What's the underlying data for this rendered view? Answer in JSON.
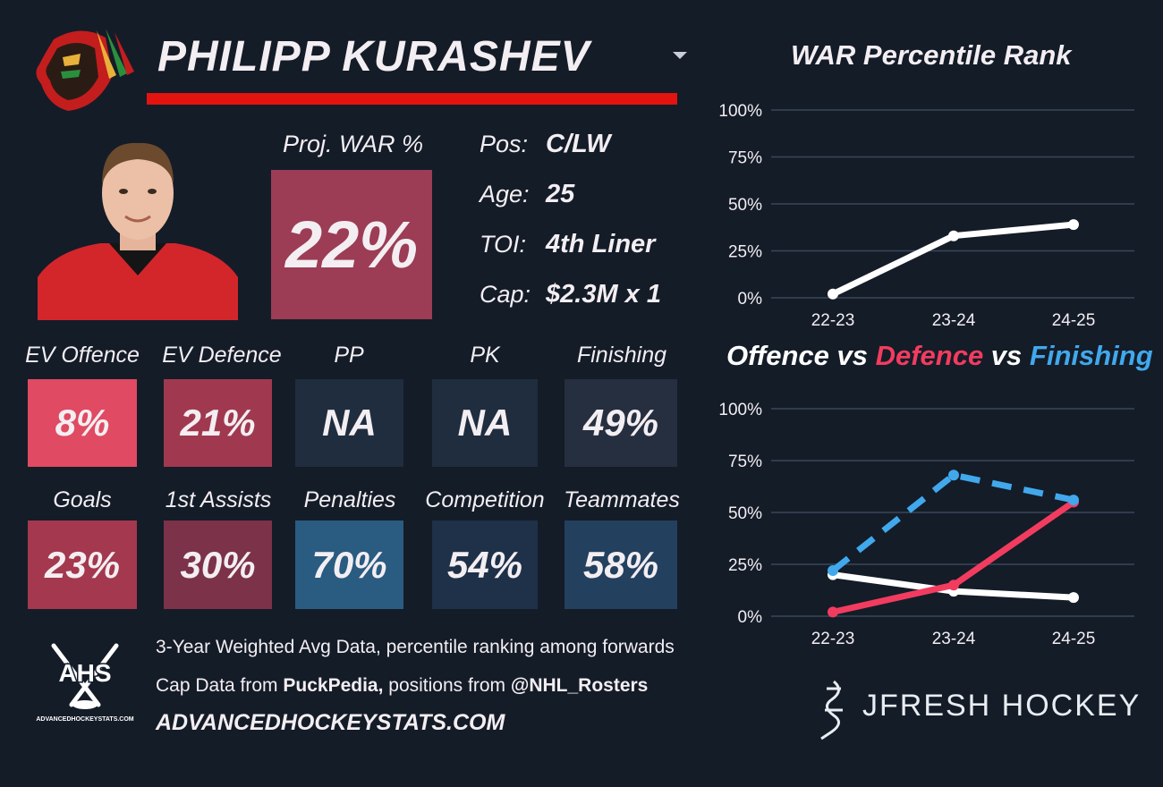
{
  "player": {
    "name": "PHILIPP KURASHEV",
    "proj_war_label": "Proj. WAR %",
    "proj_war_value": "22%",
    "info": [
      {
        "label": "Pos:",
        "value": "C/LW"
      },
      {
        "label": "Age:",
        "value": "25"
      },
      {
        "label": "TOI:",
        "value": "4th Liner"
      },
      {
        "label": "Cap:",
        "value": "$2.3M x 1"
      }
    ]
  },
  "metrics_row1": [
    {
      "label": "EV Offence",
      "value": "8%",
      "color": "#e04a62"
    },
    {
      "label": "EV Defence",
      "value": "21%",
      "color": "#a0394f"
    },
    {
      "label": "PP",
      "value": "NA",
      "color": "#1f2d3e"
    },
    {
      "label": "PK",
      "value": "NA",
      "color": "#1f2d3e"
    },
    {
      "label": "Finishing",
      "value": "49%",
      "color": "#262f40"
    }
  ],
  "metrics_row2": [
    {
      "label": "Goals",
      "value": "23%",
      "color": "#a3384e"
    },
    {
      "label": "1st Assists",
      "value": "30%",
      "color": "#7c3249"
    },
    {
      "label": "Penalties",
      "value": "70%",
      "color": "#2a5b80"
    },
    {
      "label": "Competition",
      "value": "54%",
      "color": "#1f3148"
    },
    {
      "label": "Teammates",
      "value": "58%",
      "color": "#23405f"
    }
  ],
  "footer": {
    "line1": "3-Year Weighted Avg Data, percentile ranking among forwards",
    "line2_pre": "Cap Data from ",
    "line2_bold1": "PuckPedia,",
    "line2_mid": " positions from ",
    "line2_bold2": "@NHL_Rosters",
    "site": "ADVANCEDHOCKEYSTATS.COM",
    "ahs_logo_text": "AHS",
    "ahs_logo_sub": "ADVANCEDHOCKEYSTATS.COM",
    "brand": "JFRESH HOCKEY"
  },
  "colors": {
    "background": "#141c28",
    "accent_red": "#e3130f",
    "proj_war_box": "#9c3c55",
    "offence": "#ffffff",
    "defence": "#f23c5f",
    "finishing": "#41a8ec",
    "gridline": "#3a4658"
  },
  "icons": {
    "team_logo": "blackhawks-logo",
    "player_photo": "player-headshot",
    "dropdown": "chevron-down-icon"
  },
  "chart_data": [
    {
      "type": "line",
      "title": "WAR Percentile Rank",
      "categories": [
        "22-23",
        "23-24",
        "24-25"
      ],
      "yticks": [
        "0%",
        "25%",
        "50%",
        "75%",
        "100%"
      ],
      "ylim": [
        0,
        100
      ],
      "series": [
        {
          "values": [
            2,
            33,
            39
          ],
          "color": "#ffffff",
          "dash": false
        }
      ]
    },
    {
      "type": "line",
      "title_parts": [
        {
          "text": "Offence",
          "color": "#ffffff"
        },
        {
          "text": " vs ",
          "color": "#ffffff"
        },
        {
          "text": "Defence",
          "color": "#f23c5f"
        },
        {
          "text": " vs ",
          "color": "#ffffff"
        },
        {
          "text": "Finishing",
          "color": "#41a8ec"
        }
      ],
      "categories": [
        "22-23",
        "23-24",
        "24-25"
      ],
      "yticks": [
        "0%",
        "25%",
        "50%",
        "75%",
        "100%"
      ],
      "ylim": [
        0,
        100
      ],
      "series": [
        {
          "name": "Offence",
          "values": [
            20,
            12,
            9
          ],
          "color": "#ffffff",
          "dash": false
        },
        {
          "name": "Defence",
          "values": [
            2,
            15,
            55
          ],
          "color": "#f23c5f",
          "dash": false
        },
        {
          "name": "Finishing",
          "values": [
            22,
            68,
            56
          ],
          "color": "#41a8ec",
          "dash": true
        }
      ]
    }
  ]
}
